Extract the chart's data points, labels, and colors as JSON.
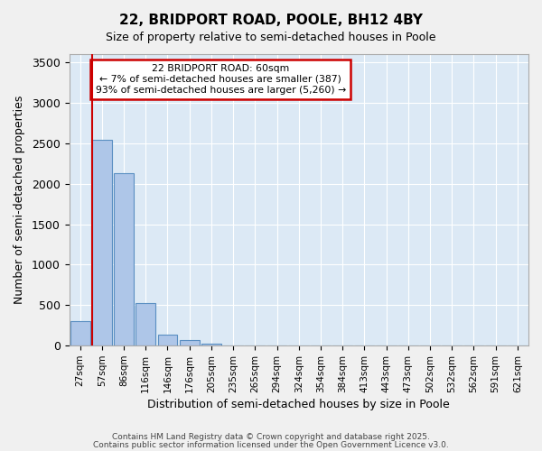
{
  "title": "22, BRIDPORT ROAD, POOLE, BH12 4BY",
  "subtitle": "Size of property relative to semi-detached houses in Poole",
  "xlabel": "Distribution of semi-detached houses by size in Poole",
  "ylabel": "Number of semi-detached properties",
  "categories": [
    "27sqm",
    "57sqm",
    "86sqm",
    "116sqm",
    "146sqm",
    "176sqm",
    "205sqm",
    "235sqm",
    "265sqm",
    "294sqm",
    "324sqm",
    "354sqm",
    "384sqm",
    "413sqm",
    "443sqm",
    "473sqm",
    "502sqm",
    "532sqm",
    "562sqm",
    "591sqm",
    "621sqm"
  ],
  "values": [
    300,
    2540,
    2130,
    530,
    140,
    65,
    30,
    5,
    0,
    0,
    0,
    0,
    0,
    0,
    0,
    0,
    0,
    0,
    0,
    0,
    0
  ],
  "bar_color": "#aec6e8",
  "bar_edge_color": "#5a8fc2",
  "background_color": "#dce9f5",
  "fig_background_color": "#f0f0f0",
  "grid_color": "#ffffff",
  "vline_index": 1,
  "vline_color": "#cc0000",
  "annotation_text": "22 BRIDPORT ROAD: 60sqm\n← 7% of semi-detached houses are smaller (387)\n93% of semi-detached houses are larger (5,260) →",
  "annotation_box_color": "#ffffff",
  "annotation_box_edge_color": "#cc0000",
  "footer1": "Contains HM Land Registry data © Crown copyright and database right 2025.",
  "footer2": "Contains public sector information licensed under the Open Government Licence v3.0.",
  "ylim": [
    0,
    3600
  ],
  "yticks": [
    0,
    500,
    1000,
    1500,
    2000,
    2500,
    3000,
    3500
  ]
}
